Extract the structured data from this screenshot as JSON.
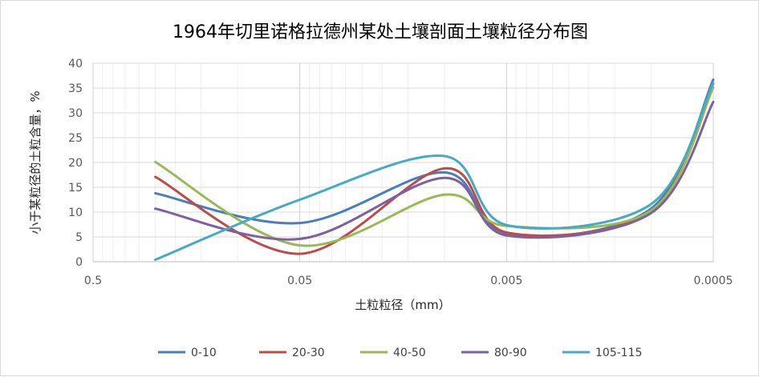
{
  "chart_data": {
    "type": "line",
    "title": "1964年切里诺格拉德州某处土壤剖面土壤粒径分布图",
    "xlabel": "土粒粒径（mm）",
    "ylabel": "小于某粒径的土粒含量，%",
    "x_scale": "log-reversed",
    "xlim": [
      0.5,
      0.0005
    ],
    "ylim": [
      0,
      40
    ],
    "x_ticks": [
      0.5,
      0.05,
      0.005,
      0.0005
    ],
    "x_tick_labels": [
      "0.5",
      "0.05",
      "0.005",
      "0.0005"
    ],
    "y_ticks": [
      0,
      5,
      10,
      15,
      20,
      25,
      30,
      35,
      40
    ],
    "grid": true,
    "legend_position": "bottom",
    "x": [
      0.25,
      0.05,
      0.01,
      0.005,
      0.001,
      0.0005
    ],
    "series": [
      {
        "name": "0-10",
        "color": "#4a7ebb",
        "values": [
          13.8,
          7.8,
          18.0,
          5.5,
          10.7,
          36.7
        ]
      },
      {
        "name": "20-30",
        "color": "#be4b48",
        "values": [
          17.1,
          1.6,
          18.8,
          5.9,
          10.2,
          35.9
        ]
      },
      {
        "name": "40-50",
        "color": "#98b954",
        "values": [
          20.1,
          3.3,
          13.5,
          7.2,
          10.3,
          35.1
        ]
      },
      {
        "name": "80-90",
        "color": "#7d60a0",
        "values": [
          10.7,
          4.6,
          16.9,
          5.3,
          9.8,
          32.2
        ]
      },
      {
        "name": "105-115",
        "color": "#46aac5",
        "values": [
          0.4,
          12.5,
          21.3,
          7.4,
          11.6,
          36.0
        ]
      }
    ]
  }
}
